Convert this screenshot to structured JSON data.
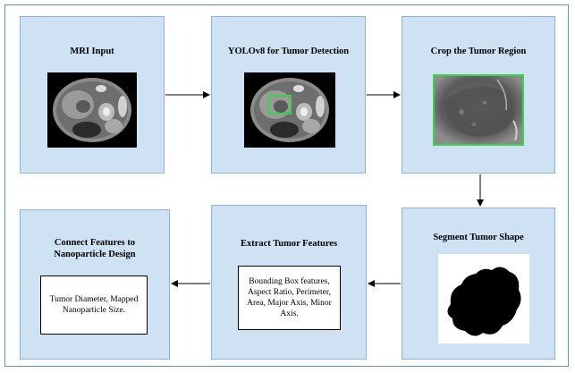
{
  "steps": {
    "mri_input": {
      "title": "MRI Input"
    },
    "yolo": {
      "title": "YOLOv8 for Tumor Detection"
    },
    "crop": {
      "title": "Crop the Tumor Region"
    },
    "segment": {
      "title": "Segment Tumor Shape"
    },
    "extract": {
      "title": "Extract Tumor Features",
      "detail": "Bounding Box features, Aspect Ratio, Perimeter, Area, Major Axis, Minor Axis."
    },
    "connect": {
      "title": "Connect Features to Nanoparticle Design",
      "detail": "Tumor Diameter, Mapped Nanoparticle Size."
    }
  },
  "colors": {
    "box_fill": "#cfe2f3",
    "box_border": "#8fb2d6",
    "detection_box": "#39d34a"
  }
}
